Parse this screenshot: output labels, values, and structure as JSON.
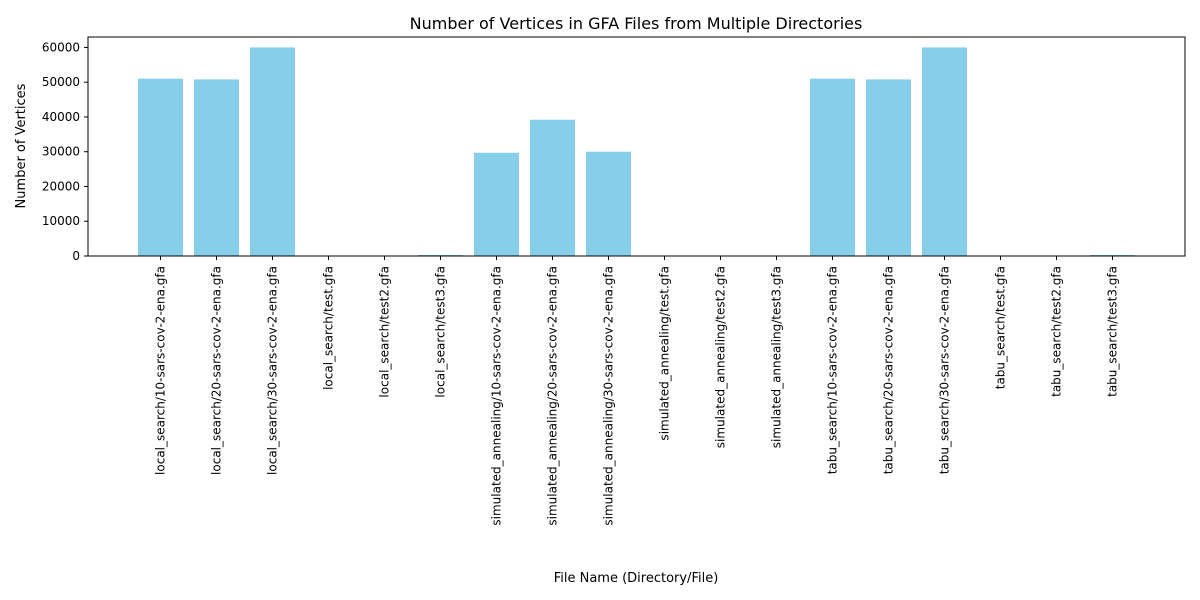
{
  "chart_data": {
    "type": "bar",
    "title": "Number of Vertices in GFA Files from Multiple Directories",
    "xlabel": "File Name (Directory/File)",
    "ylabel": "Number of Vertices",
    "ylim": [
      0,
      63000
    ],
    "yticks": [
      0,
      10000,
      20000,
      30000,
      40000,
      50000,
      60000
    ],
    "bar_color": "#87CEEB",
    "grid": false,
    "legend": "none",
    "categories": [
      "local_search/10-sars-cov-2-ena.gfa",
      "local_search/20-sars-cov-2-ena.gfa",
      "local_search/30-sars-cov-2-ena.gfa",
      "local_search/test.gfa",
      "local_search/test2.gfa",
      "local_search/test3.gfa",
      "simulated_annealing/10-sars-cov-2-ena.gfa",
      "simulated_annealing/20-sars-cov-2-ena.gfa",
      "simulated_annealing/30-sars-cov-2-ena.gfa",
      "simulated_annealing/test.gfa",
      "simulated_annealing/test2.gfa",
      "simulated_annealing/test3.gfa",
      "tabu_search/10-sars-cov-2-ena.gfa",
      "tabu_search/20-sars-cov-2-ena.gfa",
      "tabu_search/30-sars-cov-2-ena.gfa",
      "tabu_search/test.gfa",
      "tabu_search/test2.gfa",
      "tabu_search/test3.gfa"
    ],
    "values": [
      51000,
      50800,
      60000,
      10,
      10,
      300,
      29700,
      39200,
      30000,
      10,
      10,
      10,
      51000,
      50800,
      60000,
      10,
      10,
      300
    ]
  }
}
